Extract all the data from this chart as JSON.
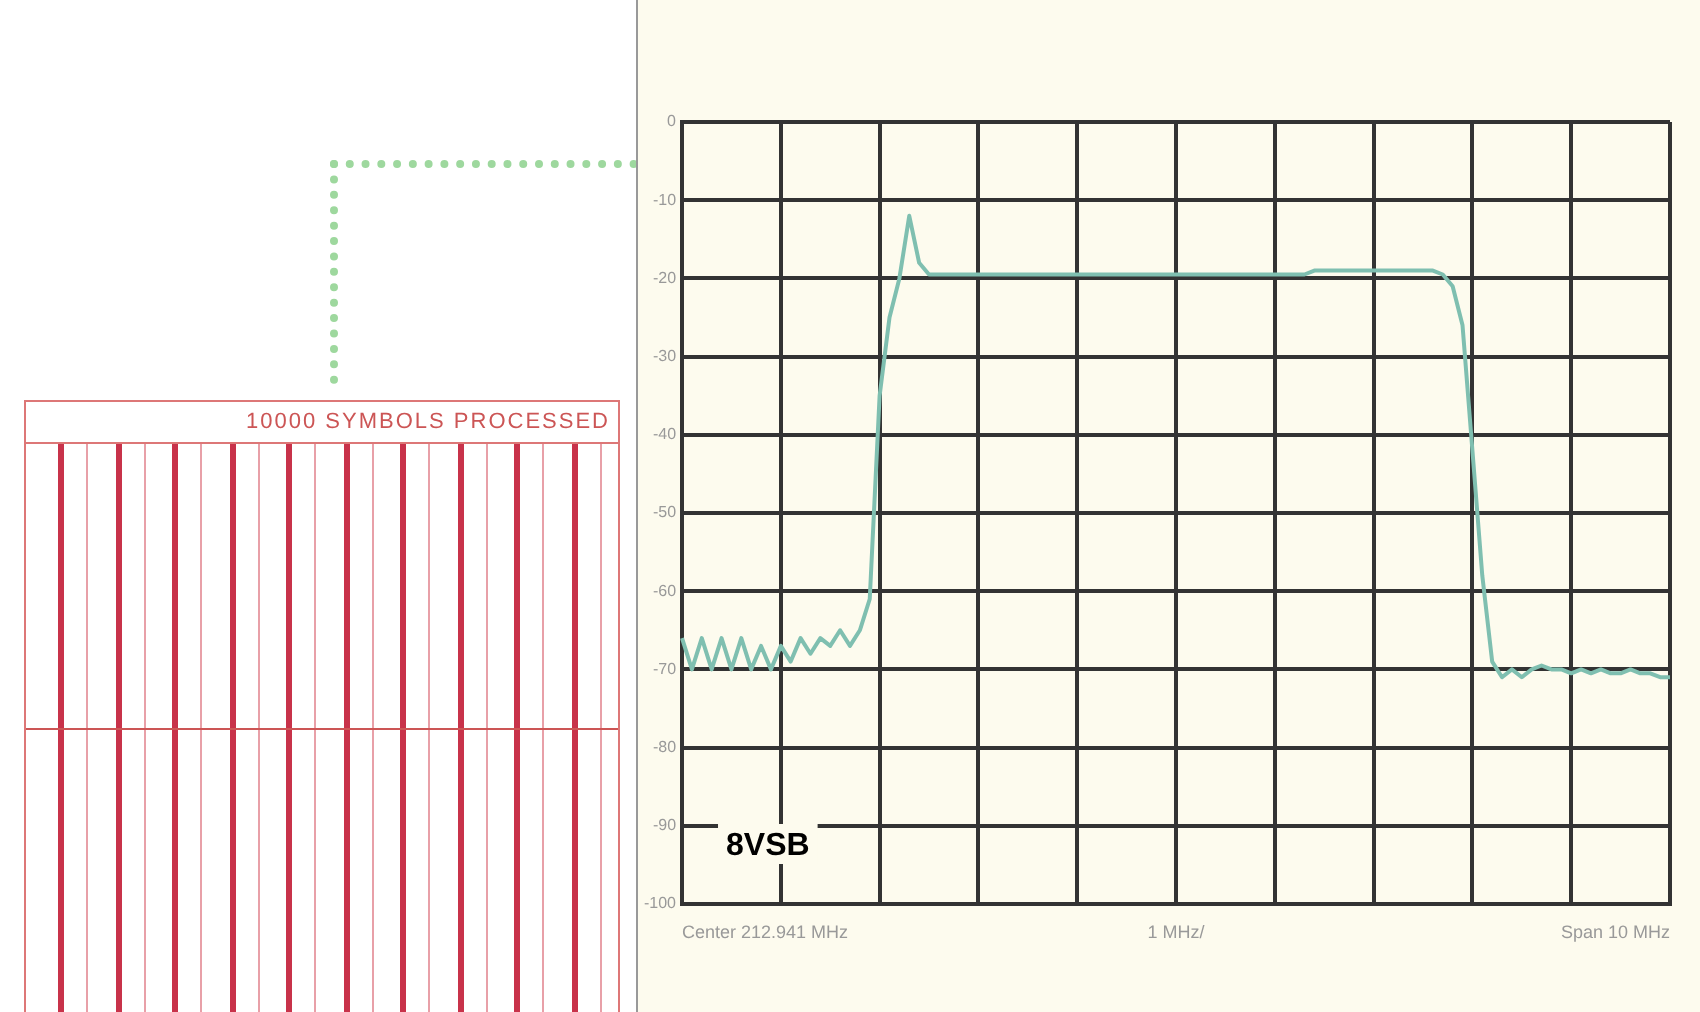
{
  "chart_data": [
    {
      "type": "other",
      "title": "10000 SYMBOLS PROCESSED"
    },
    {
      "type": "line",
      "categories": [
        null,
        null,
        null,
        null,
        null,
        null,
        null,
        null,
        null,
        null,
        null,
        null,
        null,
        null,
        null,
        null,
        null,
        null,
        null,
        null,
        null,
        null,
        null,
        null,
        null,
        null,
        null,
        null,
        null,
        null,
        null,
        null,
        null,
        null,
        null,
        null,
        null,
        null,
        null,
        null,
        null,
        null,
        null,
        null,
        null,
        null,
        null,
        null,
        null,
        null,
        null,
        null,
        null,
        null,
        null,
        null,
        null,
        null,
        null,
        null,
        null,
        null,
        null,
        null,
        null,
        null,
        null,
        null,
        null,
        null,
        null,
        null,
        null,
        null,
        null,
        null,
        null,
        null,
        null,
        null,
        null,
        null,
        null,
        null,
        null,
        null,
        null,
        null,
        null,
        null,
        null,
        null,
        null,
        null,
        null,
        null,
        null,
        null,
        null,
        null,
        null
      ],
      "series": [
        {
          "color": "#7fbfb0",
          "values": [
            -66,
            -70,
            -66,
            -70,
            -66,
            -70,
            -66,
            -70,
            -67,
            -70,
            -67,
            -69,
            -66,
            -68,
            -66,
            -67,
            -65,
            -67,
            -65,
            -61,
            -35,
            -25,
            -20,
            -12,
            -18,
            -19.5,
            -19.5,
            -19.5,
            -19.5,
            -19.5,
            -19.5,
            -19.5,
            -19.5,
            -19.5,
            -19.5,
            -19.5,
            -19.5,
            -19.5,
            -19.5,
            -19.5,
            -19.5,
            -19.5,
            -19.5,
            -19.5,
            -19.5,
            -19.5,
            -19.5,
            -19.5,
            -19.5,
            -19.5,
            -19.5,
            -19.5,
            -19.5,
            -19.5,
            -19.5,
            -19.5,
            -19.5,
            -19.5,
            -19.5,
            -19.5,
            -19.5,
            -19.5,
            -19.5,
            -19.5,
            -19,
            -19,
            -19,
            -19,
            -19,
            -19,
            -19,
            -19,
            -19,
            -19,
            -19,
            -19,
            -19,
            -19.5,
            -21,
            -26,
            -42,
            -58,
            -69,
            -71,
            -70,
            -71,
            -70,
            -69.5,
            -70,
            -70,
            -70.5,
            -70,
            -70.5,
            -70,
            -70.5,
            -70.5,
            -70,
            -70.5,
            -70.5,
            -71,
            -71
          ]
        }
      ],
      "ylim": [
        -100,
        0
      ],
      "yticks": [
        -100,
        -90,
        -80,
        -70,
        -60,
        -50,
        -40,
        -30,
        -20,
        -10,
        0
      ],
      "grid": true,
      "marker": "none",
      "line_style": "solid",
      "annotations": [
        "8VSB",
        "Center 212.941 MHz",
        "1 MHz/",
        "Span 10 MHz"
      ]
    }
  ]
}
